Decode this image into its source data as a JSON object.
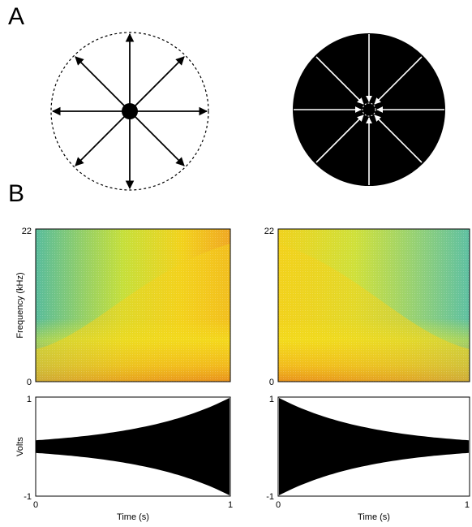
{
  "panel_a": {
    "label": "A",
    "left_diagram": "outward-arrows",
    "right_diagram": "inward-arrows"
  },
  "panel_b": {
    "label": "B",
    "spectrogram": {
      "ylabel": "Frequency (kHz)",
      "y_ticks": [
        "0",
        "22"
      ],
      "colors": {
        "high": "#d8421e",
        "mid": "#f2e81e",
        "low": "#5fbf9a"
      }
    },
    "waveform": {
      "ylabel": "Volts",
      "xlabel": "Time (s)",
      "y_ticks": [
        "1",
        "-1"
      ],
      "x_ticks": [
        "0",
        "1"
      ]
    }
  },
  "chart_data": [
    {
      "type": "heatmap",
      "name": "left-spectrogram",
      "ylabel": "Frequency (kHz)",
      "ylim": [
        0,
        22
      ],
      "trend": "increasing"
    },
    {
      "type": "heatmap",
      "name": "right-spectrogram",
      "ylim": [
        0,
        22
      ],
      "trend": "decreasing"
    },
    {
      "type": "area",
      "name": "left-waveform",
      "xlabel": "Time (s)",
      "ylabel": "Volts",
      "xlim": [
        0,
        1
      ],
      "ylim": [
        -1,
        1
      ],
      "envelope_start": 0.13,
      "envelope_end": 1.0
    },
    {
      "type": "area",
      "name": "right-waveform",
      "xlabel": "Time (s)",
      "xlim": [
        0,
        1
      ],
      "ylim": [
        -1,
        1
      ],
      "envelope_start": 1.0,
      "envelope_end": 0.13
    }
  ]
}
